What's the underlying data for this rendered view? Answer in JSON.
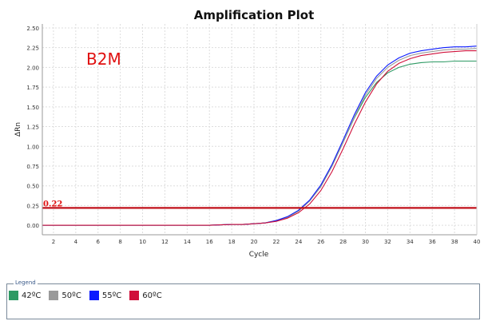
{
  "chart_data": {
    "type": "line",
    "title": "Amplification Plot",
    "xlabel": "Cycle",
    "ylabel": "ΔRn",
    "annotation": "B2M",
    "xlim": [
      1,
      40
    ],
    "ylim": [
      -0.12,
      2.55
    ],
    "xticks": [
      2,
      4,
      6,
      8,
      10,
      12,
      14,
      16,
      18,
      20,
      22,
      24,
      26,
      28,
      30,
      32,
      34,
      36,
      38,
      40
    ],
    "yticks": [
      0.0,
      0.25,
      0.5,
      0.75,
      1.0,
      1.25,
      1.5,
      1.75,
      2.0,
      2.25,
      2.5
    ],
    "grid": true,
    "threshold": {
      "value": 0.22,
      "label": "0.22",
      "color": "#c0101a"
    },
    "x": [
      1,
      2,
      3,
      4,
      5,
      6,
      7,
      8,
      9,
      10,
      11,
      12,
      13,
      14,
      15,
      16,
      17,
      18,
      19,
      20,
      21,
      22,
      23,
      24,
      25,
      26,
      27,
      28,
      29,
      30,
      31,
      32,
      33,
      34,
      35,
      36,
      37,
      38,
      39,
      40
    ],
    "series": [
      {
        "name": "42ºC",
        "color": "#2e9a64",
        "values": [
          0,
          0,
          0,
          0,
          0,
          0,
          0,
          0,
          0,
          0,
          0,
          0,
          0,
          0,
          0,
          0,
          0.005,
          0.01,
          0.01,
          0.02,
          0.03,
          0.06,
          0.1,
          0.18,
          0.31,
          0.49,
          0.75,
          1.05,
          1.36,
          1.62,
          1.81,
          1.93,
          2.0,
          2.04,
          2.06,
          2.07,
          2.07,
          2.08,
          2.08,
          2.08
        ]
      },
      {
        "name": "50ºC",
        "color": "#9a9a9a",
        "values": [
          0,
          0,
          0,
          0,
          0,
          0,
          0,
          0,
          0,
          0,
          0,
          0,
          0,
          0,
          0,
          0,
          0.005,
          0.01,
          0.01,
          0.02,
          0.03,
          0.06,
          0.1,
          0.18,
          0.31,
          0.49,
          0.75,
          1.05,
          1.37,
          1.65,
          1.86,
          2.0,
          2.09,
          2.15,
          2.18,
          2.2,
          2.22,
          2.23,
          2.23,
          2.24
        ]
      },
      {
        "name": "55ºC",
        "color": "#0a1aff",
        "values": [
          0,
          0,
          0,
          0,
          0,
          0,
          0,
          0,
          0,
          0,
          0,
          0,
          0,
          0,
          0,
          0,
          0.005,
          0.01,
          0.01,
          0.02,
          0.03,
          0.06,
          0.11,
          0.19,
          0.32,
          0.51,
          0.77,
          1.08,
          1.4,
          1.68,
          1.89,
          2.03,
          2.12,
          2.18,
          2.21,
          2.23,
          2.25,
          2.26,
          2.26,
          2.27
        ]
      },
      {
        "name": "60ºC",
        "color": "#d0103a",
        "values": [
          0,
          0,
          0,
          0,
          0,
          0,
          0,
          0,
          0,
          0,
          0,
          0,
          0,
          0,
          0,
          0,
          0.005,
          0.01,
          0.01,
          0.02,
          0.03,
          0.05,
          0.09,
          0.16,
          0.27,
          0.44,
          0.68,
          0.97,
          1.28,
          1.56,
          1.79,
          1.95,
          2.05,
          2.11,
          2.15,
          2.17,
          2.19,
          2.2,
          2.21,
          2.21
        ]
      }
    ],
    "legend": {
      "title": "Legend",
      "position": "bottom"
    }
  }
}
